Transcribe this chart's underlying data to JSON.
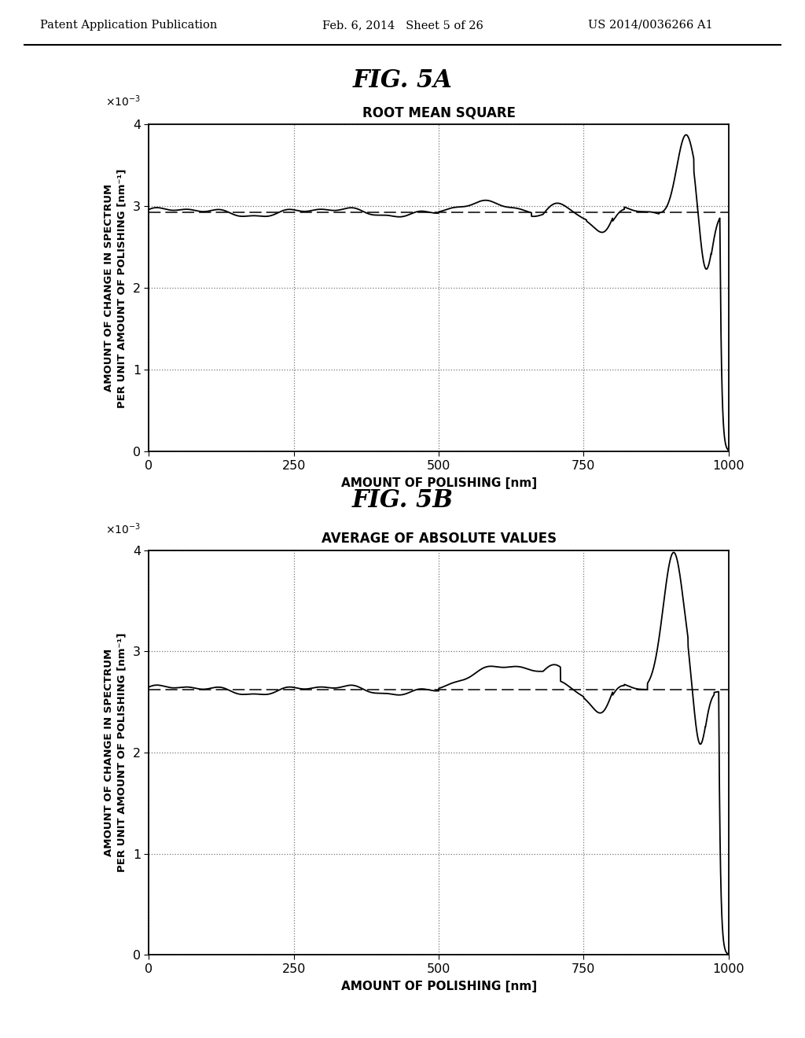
{
  "fig5a_title": "FIG. 5A",
  "fig5b_title": "FIG. 5B",
  "plot5a_title": "ROOT MEAN SQUARE",
  "plot5b_title": "AVERAGE OF ABSOLUTE VALUES",
  "xlabel": "AMOUNT OF POLISHING [nm]",
  "ylabel": "AMOUNT OF CHANGE IN SPECTRUM\nPER UNIT AMOUNT OF POLISHING [nm⁻¹]",
  "xlim": [
    0,
    1000
  ],
  "ylim": [
    0,
    4
  ],
  "xticks": [
    0,
    250,
    500,
    750,
    1000
  ],
  "yticks": [
    0,
    1,
    2,
    3,
    4
  ],
  "header_left": "Patent Application Publication",
  "header_mid": "Feb. 6, 2014   Sheet 5 of 26",
  "header_right": "US 2014/0036266 A1",
  "dash_5a": 2.93,
  "dash_5b": 2.62,
  "background_color": "#ffffff"
}
